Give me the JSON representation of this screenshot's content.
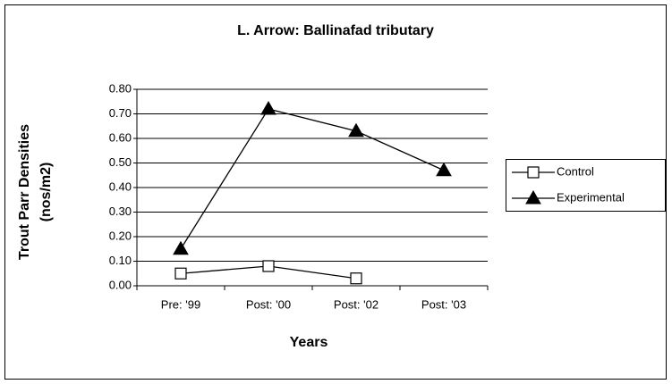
{
  "chart_data": {
    "type": "line",
    "title": "L. Arrow: Ballinafad tributary",
    "x_label": "Years",
    "y_label_lines": [
      "Trout Parr Densities",
      "(nos/m2)"
    ],
    "categories": [
      "Pre: '99",
      "Post: '00",
      "Post: '02",
      "Post: '03"
    ],
    "series": [
      {
        "name": "Control",
        "color": "#000000",
        "marker": "square",
        "values": [
          0.05,
          0.08,
          0.03,
          null
        ]
      },
      {
        "name": "Experimental",
        "color": "#000000",
        "marker": "triangle",
        "values": [
          0.15,
          0.72,
          0.63,
          0.47
        ]
      }
    ],
    "ylim": [
      0,
      0.8
    ],
    "yticks": [
      {
        "value": 0,
        "label": "0.00"
      },
      {
        "value": 0.1,
        "label": "0.10"
      },
      {
        "value": 0.2,
        "label": "0.20"
      },
      {
        "value": 0.3,
        "label": "0.30"
      },
      {
        "value": 0.4,
        "label": "0.40"
      },
      {
        "value": 0.5,
        "label": "0.50"
      },
      {
        "value": 0.6,
        "label": "0.60"
      },
      {
        "value": 0.7,
        "label": "0.70"
      },
      {
        "value": 0.8,
        "label": "0.80"
      }
    ],
    "grid": true,
    "legend": "right"
  }
}
